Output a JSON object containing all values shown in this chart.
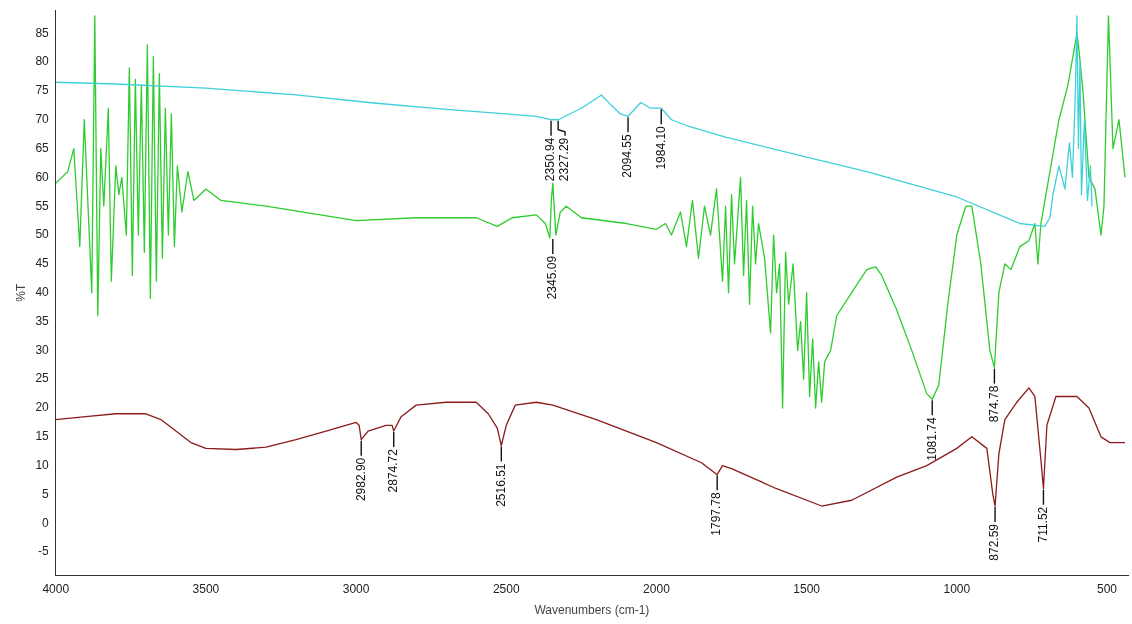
{
  "chart_data": {
    "type": "line",
    "xlabel": "Wavenumbers (cm-1)",
    "ylabel": "%T",
    "xlim": [
      4000,
      430
    ],
    "ylim": [
      -9,
      89
    ],
    "xticks": [
      4000,
      3500,
      3000,
      2500,
      2000,
      1500,
      1000,
      500
    ],
    "yticks": [
      -5,
      0,
      5,
      10,
      15,
      20,
      25,
      30,
      35,
      40,
      45,
      50,
      55,
      60,
      65,
      70,
      75,
      80,
      85
    ],
    "grid": false,
    "legend": false,
    "series": [
      {
        "color": "#3fd0dc",
        "x": [
          4000,
          3800,
          3500,
          3200,
          2941,
          2700,
          2500,
          2400,
          2350.94,
          2327.29,
          2250,
          2183,
          2150,
          2120,
          2094.55,
          2052,
          2020,
          1984.1,
          1950,
          1900,
          1770,
          1500,
          1300,
          1000,
          790,
          707,
          690,
          680,
          660,
          640,
          625,
          615,
          605,
          600,
          595,
          590,
          585,
          575,
          565,
          555,
          550
        ],
        "values": [
          76.5,
          76.2,
          75.5,
          74.3,
          72.9,
          71.8,
          71,
          70.6,
          70,
          70,
          72,
          74.3,
          72.5,
          71,
          70.6,
          73,
          72,
          72,
          70,
          69,
          67,
          63.5,
          61,
          56.6,
          52,
          51.5,
          53,
          57,
          62,
          58,
          66,
          60,
          75,
          88,
          65,
          80,
          57,
          70,
          56,
          62,
          55
        ]
      },
      {
        "color": "#2ecc2e",
        "x": [
          4000,
          3960,
          3940,
          3920,
          3905,
          3890,
          3880,
          3870,
          3860,
          3850,
          3840,
          3825,
          3815,
          3800,
          3790,
          3780,
          3765,
          3755,
          3745,
          3735,
          3725,
          3715,
          3705,
          3695,
          3685,
          3675,
          3665,
          3655,
          3645,
          3635,
          3625,
          3615,
          3605,
          3595,
          3580,
          3560,
          3540,
          3500,
          3450,
          3300,
          3000,
          2800,
          2600,
          2530,
          2480,
          2400,
          2370,
          2355,
          2350,
          2345.09,
          2335,
          2320,
          2300,
          2250,
          2100,
          2000,
          1970,
          1950,
          1920,
          1900,
          1880,
          1860,
          1840,
          1820,
          1800,
          1780,
          1770,
          1760,
          1750,
          1740,
          1720,
          1710,
          1700,
          1690,
          1680,
          1670,
          1660,
          1640,
          1620,
          1610,
          1600,
          1590,
          1580,
          1570,
          1560,
          1545,
          1530,
          1520,
          1510,
          1500,
          1490,
          1480,
          1470,
          1460,
          1450,
          1440,
          1420,
          1400,
          1350,
          1300,
          1270,
          1250,
          1200,
          1150,
          1100,
          1081.74,
          1060,
          1030,
          1000,
          970,
          950,
          920,
          890,
          874.78,
          860,
          840,
          820,
          790,
          760,
          740,
          730,
          720,
          690,
          660,
          630,
          610,
          600,
          595,
          580,
          560,
          540,
          520,
          510,
          495,
          480,
          460,
          440
        ],
        "values": [
          59,
          61,
          65,
          48,
          70,
          52,
          40,
          88,
          36,
          65,
          55,
          72,
          42,
          62,
          57,
          60,
          50,
          79,
          43,
          77,
          50,
          76,
          47,
          83,
          39,
          81,
          42,
          78,
          46,
          72,
          50,
          71,
          48,
          62,
          54,
          61,
          56,
          58,
          56,
          55,
          52.5,
          53,
          53,
          51.5,
          53,
          53.5,
          52,
          49.5,
          56,
          59,
          50,
          54,
          55,
          53,
          52,
          51,
          52,
          50,
          54,
          48,
          56,
          46,
          55,
          50,
          58,
          42,
          55,
          40,
          57,
          45,
          60,
          43,
          56,
          38,
          55,
          45,
          52,
          46,
          33,
          50,
          40,
          45,
          20,
          47,
          38,
          45,
          30,
          35,
          25,
          40,
          22,
          32,
          20,
          28,
          21,
          28,
          30,
          36,
          40,
          44,
          44.5,
          43,
          37,
          30,
          22.5,
          21.5,
          24,
          38,
          50,
          55,
          55,
          45,
          30,
          27,
          40,
          45,
          44,
          48,
          49,
          52,
          45,
          52,
          61,
          70,
          76,
          82,
          85,
          83,
          75,
          60,
          58,
          50,
          55,
          88,
          65,
          70,
          60
        ]
      },
      {
        "color": "#8b1c1c",
        "x": [
          4000,
          3900,
          3800,
          3700,
          3650,
          3600,
          3550,
          3500,
          3400,
          3300,
          3200,
          3100,
          3000,
          2990,
          2982.9,
          2960,
          2900,
          2880,
          2874.72,
          2850,
          2800,
          2700,
          2600,
          2560,
          2530,
          2516.51,
          2500,
          2470,
          2400,
          2345.09,
          2200,
          2000,
          1850,
          1800,
          1797.78,
          1780,
          1750,
          1600,
          1450,
          1350,
          1200,
          1100,
          1000,
          950,
          900,
          880,
          872.59,
          860,
          840,
          800,
          760,
          740,
          720,
          711.52,
          700,
          670,
          600,
          560,
          520,
          490,
          440
        ],
        "values": [
          18,
          18.5,
          19,
          19,
          18,
          16,
          14,
          13,
          12.8,
          13.2,
          14.5,
          16,
          17.5,
          17,
          14.5,
          16,
          17,
          17,
          16,
          18.5,
          20.5,
          21,
          21,
          19,
          16.5,
          13.5,
          17,
          20.5,
          21,
          20.5,
          18,
          14,
          10.5,
          8.5,
          8.5,
          10,
          9.5,
          6,
          3,
          4,
          8,
          10,
          13,
          15,
          13,
          5,
          3,
          12,
          18,
          21,
          23.5,
          22,
          11,
          6,
          17,
          22,
          22,
          20,
          15,
          14,
          14
        ]
      }
    ],
    "annotations": [
      {
        "text": "2350.94",
        "x": 2350.94,
        "y": 70
      },
      {
        "text": "2327.29",
        "x": 2327.29,
        "y": 70
      },
      {
        "text": "2094.55",
        "x": 2094.55,
        "y": 70.6
      },
      {
        "text": "1984.10",
        "x": 1984.1,
        "y": 72
      },
      {
        "text": "2345.09",
        "x": 2345.09,
        "y": 49.5
      },
      {
        "text": "1081.74",
        "x": 1081.74,
        "y": 21.5
      },
      {
        "text": "874.78",
        "x": 874.78,
        "y": 27
      },
      {
        "text": "2982.90",
        "x": 2982.9,
        "y": 14.5
      },
      {
        "text": "2874.72",
        "x": 2874.72,
        "y": 16
      },
      {
        "text": "2516.51",
        "x": 2516.51,
        "y": 13.5
      },
      {
        "text": "1797.78",
        "x": 1797.78,
        "y": 8.5
      },
      {
        "text": "872.59",
        "x": 872.59,
        "y": 3
      },
      {
        "text": "711.52",
        "x": 711.52,
        "y": 6
      }
    ]
  }
}
